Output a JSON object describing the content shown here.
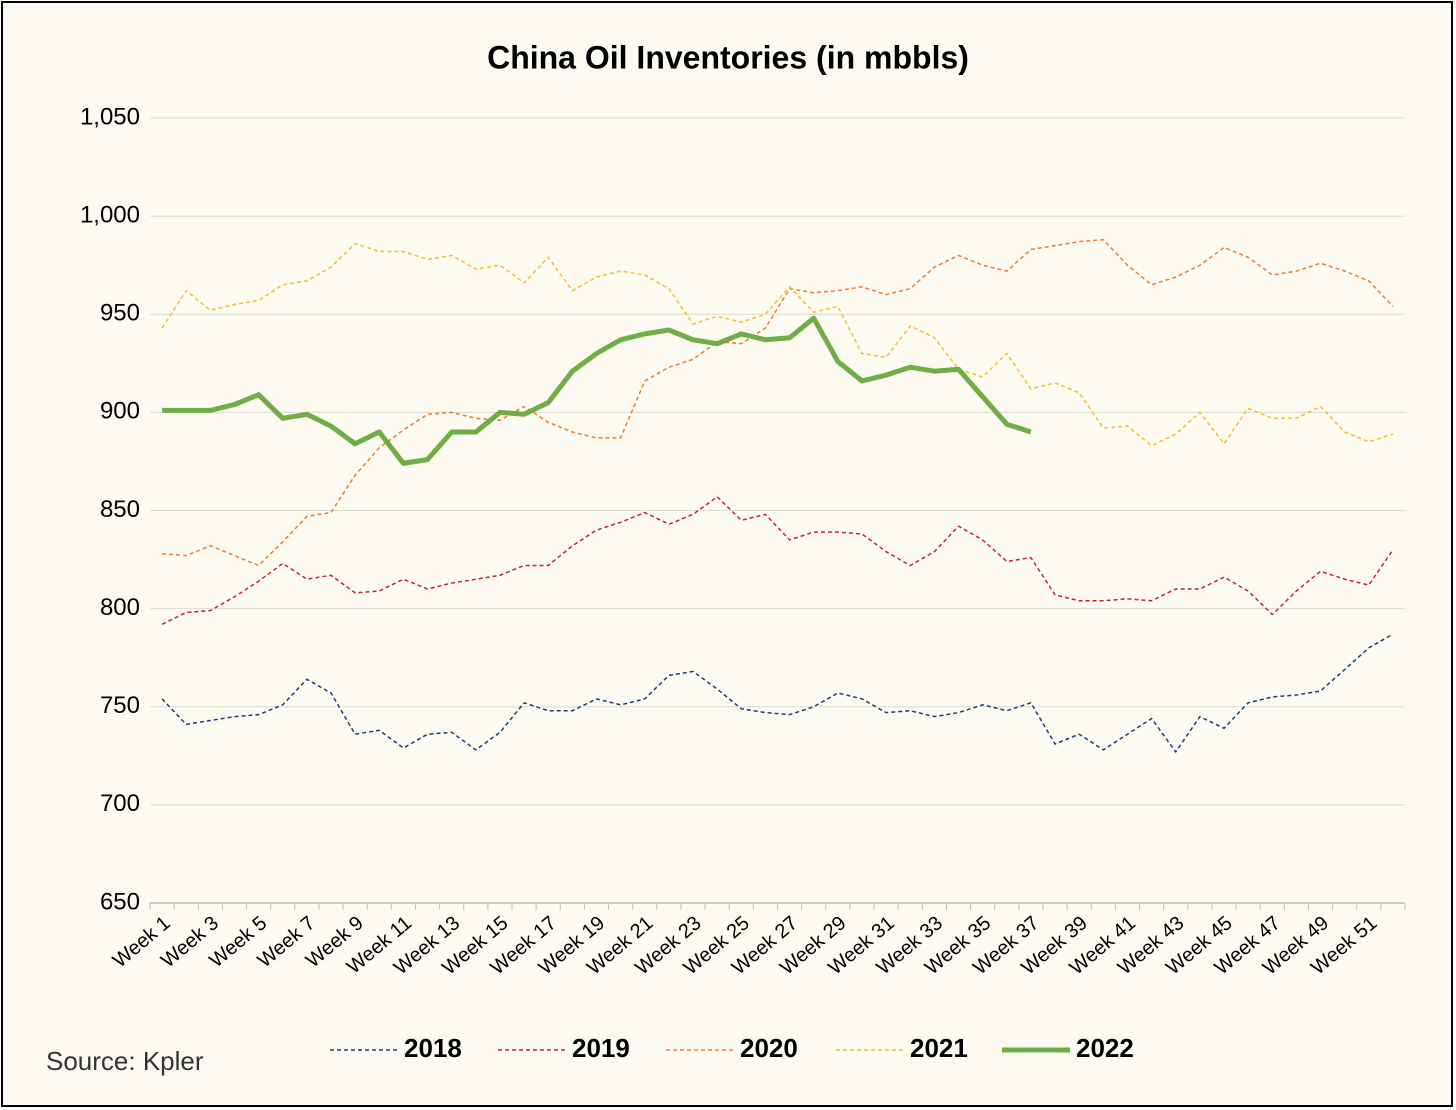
{
  "chart_data": {
    "type": "line",
    "title": "China Oil Inventories (in mbbls)",
    "source": "Source: Kpler",
    "categories": [
      "Week 1",
      null,
      "Week 3",
      null,
      "Week 5",
      null,
      "Week 7",
      null,
      "Week 9",
      null,
      "Week 11",
      null,
      "Week 13",
      null,
      "Week 15",
      null,
      "Week 17",
      null,
      "Week 19",
      null,
      "Week 21",
      null,
      "Week 23",
      null,
      "Week 25",
      null,
      "Week 27",
      null,
      "Week 29",
      null,
      "Week 31",
      null,
      "Week 33",
      null,
      "Week 35",
      null,
      "Week 37",
      null,
      "Week 39",
      null,
      "Week 41",
      null,
      "Week 43",
      null,
      "Week 45",
      null,
      "Week 47",
      null,
      "Week 49",
      null,
      "Week 51",
      null
    ],
    "series": [
      {
        "name": "2018",
        "color": "#1f3b7a",
        "style": "dashed",
        "values": [
          754,
          741,
          743,
          745,
          746,
          751,
          764,
          757,
          736,
          738,
          729,
          736,
          737,
          728,
          737,
          752,
          748,
          748,
          754,
          751,
          754,
          766,
          768,
          759,
          749,
          747,
          746,
          750,
          757,
          754,
          747,
          748,
          745,
          747,
          751,
          748,
          752,
          731,
          736,
          728,
          736,
          744,
          727,
          745,
          739,
          752,
          755,
          756,
          758,
          769,
          780,
          787
        ]
      },
      {
        "name": "2019",
        "color": "#c0272d",
        "style": "dashed",
        "values": [
          792,
          798,
          799,
          806,
          814,
          823,
          815,
          817,
          808,
          809,
          815,
          810,
          813,
          815,
          817,
          822,
          822,
          832,
          840,
          844,
          849,
          843,
          848,
          857,
          845,
          848,
          835,
          839,
          839,
          838,
          829,
          822,
          829,
          842,
          835,
          824,
          826,
          807,
          804,
          804,
          805,
          804,
          810,
          810,
          816,
          809,
          797,
          809,
          819,
          815,
          812,
          830
        ]
      },
      {
        "name": "2020",
        "color": "#ed7d31",
        "style": "dashed",
        "values": [
          828,
          827,
          832,
          827,
          822,
          834,
          847,
          849,
          868,
          882,
          891,
          899,
          900,
          897,
          896,
          903,
          895,
          890,
          887,
          887,
          916,
          923,
          927,
          936,
          935,
          943,
          963,
          961,
          962,
          964,
          960,
          963,
          974,
          980,
          975,
          972,
          983,
          985,
          987,
          988,
          975,
          965,
          969,
          975,
          984,
          979,
          970,
          972,
          976,
          972,
          967,
          954
        ]
      },
      {
        "name": "2021",
        "color": "#f2c12e",
        "style": "dashed",
        "values": [
          943,
          962,
          952,
          955,
          957,
          965,
          967,
          974,
          986,
          982,
          982,
          978,
          980,
          973,
          975,
          966,
          979,
          962,
          969,
          972,
          970,
          963,
          945,
          949,
          946,
          950,
          964,
          951,
          954,
          930,
          928,
          944,
          938,
          922,
          918,
          930,
          912,
          915,
          910,
          892,
          893,
          883,
          889,
          900,
          884,
          902,
          897,
          897,
          903,
          890,
          885,
          889
        ]
      },
      {
        "name": "2022",
        "color": "#70ad47",
        "style": "solid",
        "values": [
          901,
          901,
          901,
          904,
          909,
          897,
          899,
          893,
          884,
          890,
          874,
          876,
          890,
          890,
          900,
          899,
          905,
          921,
          930,
          937,
          940,
          942,
          937,
          935,
          940,
          937,
          938,
          948,
          926,
          916,
          919,
          923,
          921,
          922,
          908,
          894,
          890,
          null,
          null,
          null,
          null,
          null,
          null,
          null,
          null,
          null,
          null,
          null,
          null,
          null,
          null,
          null
        ]
      }
    ],
    "ylim": [
      650,
      1050
    ],
    "yticks": [
      650,
      700,
      750,
      800,
      850,
      900,
      950,
      {
        "value": 1000,
        "label": "1,000"
      },
      {
        "value": 1050,
        "label": "1,050"
      }
    ],
    "grid": true,
    "legend": "bottom"
  }
}
